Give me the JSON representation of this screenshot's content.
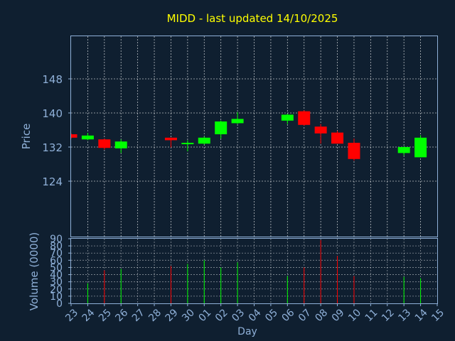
{
  "chart_data": {
    "type": "candlestick",
    "title": "MIDD - last updated 14/10/2025",
    "xlabel": "Day",
    "ylabel": "Price",
    "volume_label": "Volume (0000)",
    "x_ticks": [
      "23",
      "24",
      "25",
      "26",
      "27",
      "28",
      "29",
      "30",
      "01",
      "02",
      "03",
      "04",
      "05",
      "06",
      "07",
      "08",
      "09",
      "10",
      "11",
      "12",
      "13",
      "14",
      "15"
    ],
    "price_ticks": [
      124,
      132,
      140,
      148
    ],
    "price_range": [
      111,
      158
    ],
    "volume_ticks": [
      0,
      10,
      20,
      30,
      40,
      50,
      60,
      70,
      80,
      90
    ],
    "volume_range": [
      0,
      90
    ],
    "grid": true,
    "colors": {
      "background": "#0f1f30",
      "up": "#00ff00",
      "down": "#ff0000",
      "title": "#ffff00",
      "axis_text": "#8fb0d8",
      "frame": "#8fb0d8",
      "grid": "#ffffff"
    },
    "candles": [
      {
        "day": "23",
        "open": 135.0,
        "high": 135.2,
        "low": 134.0,
        "close": 134.2,
        "volume": 0
      },
      {
        "day": "24",
        "open": 133.8,
        "high": 135.3,
        "low": 133.6,
        "close": 134.7,
        "volume": 28
      },
      {
        "day": "25",
        "open": 133.8,
        "high": 134.0,
        "low": 131.4,
        "close": 131.8,
        "volume": 46
      },
      {
        "day": "26",
        "open": 131.7,
        "high": 133.8,
        "low": 130.6,
        "close": 133.3,
        "volume": 48
      },
      {
        "day": "29",
        "open": 134.2,
        "high": 134.2,
        "low": 131.9,
        "close": 133.6,
        "volume": 52
      },
      {
        "day": "30",
        "open": 132.8,
        "high": 133.6,
        "low": 131.0,
        "close": 133.0,
        "volume": 55
      },
      {
        "day": "01",
        "open": 132.8,
        "high": 134.5,
        "low": 132.6,
        "close": 134.2,
        "volume": 60
      },
      {
        "day": "02",
        "open": 135.0,
        "high": 138.2,
        "low": 134.0,
        "close": 138.0,
        "volume": 50
      },
      {
        "day": "03",
        "open": 137.6,
        "high": 140.2,
        "low": 137.4,
        "close": 138.6,
        "volume": 57
      },
      {
        "day": "06",
        "open": 138.2,
        "high": 139.8,
        "low": 137.4,
        "close": 139.6,
        "volume": 38
      },
      {
        "day": "07",
        "open": 140.4,
        "high": 140.6,
        "low": 137.0,
        "close": 137.2,
        "volume": 50
      },
      {
        "day": "08",
        "open": 136.8,
        "high": 137.4,
        "low": 132.8,
        "close": 135.2,
        "volume": 88
      },
      {
        "day": "09",
        "open": 135.4,
        "high": 135.8,
        "low": 132.8,
        "close": 132.8,
        "volume": 66
      },
      {
        "day": "10",
        "open": 133.0,
        "high": 134.0,
        "low": 128.8,
        "close": 129.2,
        "volume": 38
      },
      {
        "day": "13",
        "open": 130.6,
        "high": 132.2,
        "low": 130.0,
        "close": 132.0,
        "volume": 37
      },
      {
        "day": "14",
        "open": 129.6,
        "high": 134.8,
        "low": 129.6,
        "close": 134.2,
        "volume": 35
      }
    ]
  }
}
